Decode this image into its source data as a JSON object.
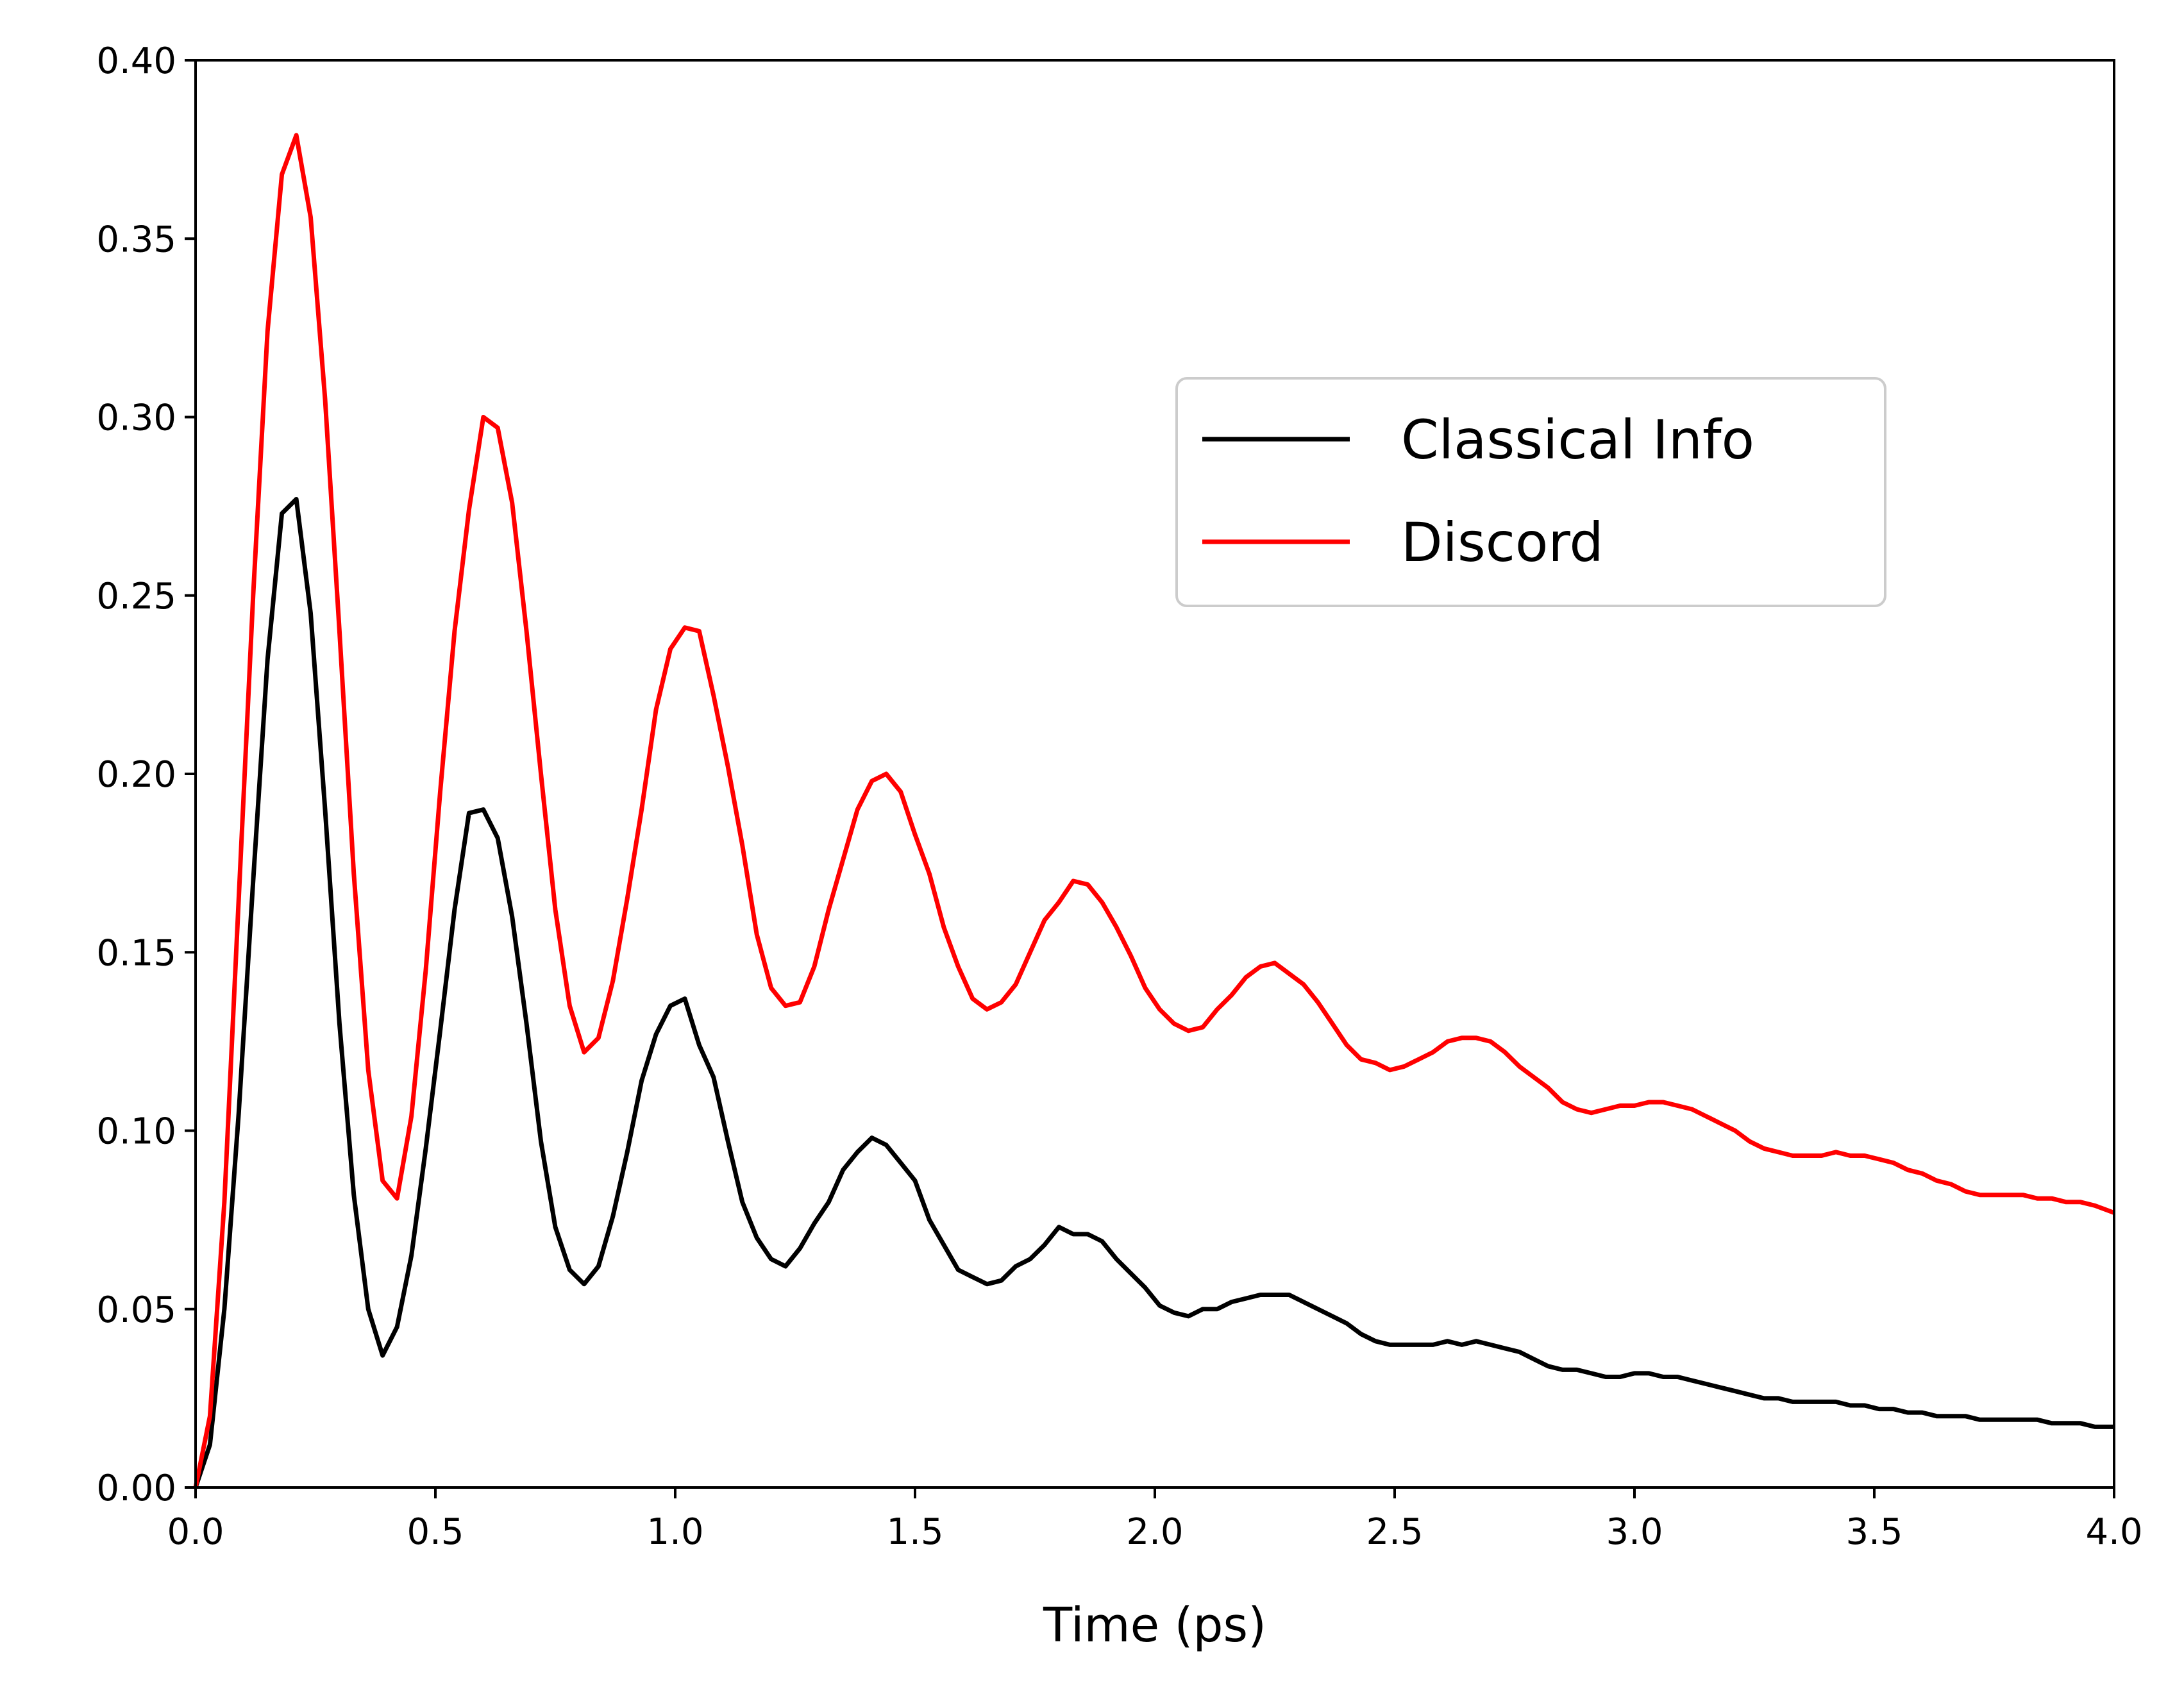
{
  "chart_data": {
    "type": "line",
    "title": "",
    "xlabel": "Time (ps)",
    "ylabel": "",
    "xlim": [
      0,
      4.0
    ],
    "ylim": [
      0,
      0.4
    ],
    "x_ticks": [
      0.0,
      0.5,
      1.0,
      1.5,
      2.0,
      2.5,
      3.0,
      3.5,
      4.0
    ],
    "y_ticks": [
      0.0,
      0.05,
      0.1,
      0.15,
      0.2,
      0.25,
      0.3,
      0.35,
      0.4
    ],
    "x_tick_labels": [
      "0.0",
      "0.5",
      "1.0",
      "1.5",
      "2.0",
      "2.5",
      "3.0",
      "3.5",
      "4.0"
    ],
    "y_tick_labels": [
      "0.00",
      "0.05",
      "0.10",
      "0.15",
      "0.20",
      "0.25",
      "0.30",
      "0.35",
      "0.40"
    ],
    "grid": false,
    "legend": {
      "position": "upper-right-center"
    },
    "series": [
      {
        "name": "Classical Info",
        "color": "#000000",
        "points": [
          [
            0.0,
            0.0
          ],
          [
            0.03,
            0.012
          ],
          [
            0.06,
            0.05
          ],
          [
            0.09,
            0.105
          ],
          [
            0.12,
            0.17
          ],
          [
            0.15,
            0.232
          ],
          [
            0.18,
            0.273
          ],
          [
            0.21,
            0.277
          ],
          [
            0.24,
            0.245
          ],
          [
            0.27,
            0.19
          ],
          [
            0.3,
            0.13
          ],
          [
            0.33,
            0.082
          ],
          [
            0.36,
            0.05
          ],
          [
            0.39,
            0.037
          ],
          [
            0.42,
            0.045
          ],
          [
            0.45,
            0.065
          ],
          [
            0.48,
            0.095
          ],
          [
            0.51,
            0.128
          ],
          [
            0.54,
            0.162
          ],
          [
            0.57,
            0.189
          ],
          [
            0.6,
            0.19
          ],
          [
            0.63,
            0.182
          ],
          [
            0.66,
            0.16
          ],
          [
            0.69,
            0.13
          ],
          [
            0.72,
            0.097
          ],
          [
            0.75,
            0.073
          ],
          [
            0.78,
            0.061
          ],
          [
            0.81,
            0.057
          ],
          [
            0.84,
            0.062
          ],
          [
            0.87,
            0.076
          ],
          [
            0.9,
            0.094
          ],
          [
            0.93,
            0.114
          ],
          [
            0.96,
            0.127
          ],
          [
            0.99,
            0.135
          ],
          [
            1.02,
            0.137
          ],
          [
            1.05,
            0.124
          ],
          [
            1.08,
            0.115
          ],
          [
            1.11,
            0.097
          ],
          [
            1.14,
            0.08
          ],
          [
            1.17,
            0.07
          ],
          [
            1.2,
            0.064
          ],
          [
            1.23,
            0.062
          ],
          [
            1.26,
            0.067
          ],
          [
            1.29,
            0.074
          ],
          [
            1.32,
            0.08
          ],
          [
            1.35,
            0.089
          ],
          [
            1.38,
            0.094
          ],
          [
            1.41,
            0.098
          ],
          [
            1.44,
            0.096
          ],
          [
            1.47,
            0.091
          ],
          [
            1.5,
            0.086
          ],
          [
            1.53,
            0.075
          ],
          [
            1.56,
            0.068
          ],
          [
            1.59,
            0.061
          ],
          [
            1.62,
            0.059
          ],
          [
            1.65,
            0.057
          ],
          [
            1.68,
            0.058
          ],
          [
            1.71,
            0.062
          ],
          [
            1.74,
            0.064
          ],
          [
            1.77,
            0.068
          ],
          [
            1.8,
            0.073
          ],
          [
            1.83,
            0.071
          ],
          [
            1.86,
            0.071
          ],
          [
            1.89,
            0.069
          ],
          [
            1.92,
            0.064
          ],
          [
            1.95,
            0.06
          ],
          [
            1.98,
            0.056
          ],
          [
            2.01,
            0.051
          ],
          [
            2.04,
            0.049
          ],
          [
            2.07,
            0.048
          ],
          [
            2.1,
            0.05
          ],
          [
            2.13,
            0.05
          ],
          [
            2.16,
            0.052
          ],
          [
            2.19,
            0.053
          ],
          [
            2.22,
            0.054
          ],
          [
            2.25,
            0.054
          ],
          [
            2.28,
            0.054
          ],
          [
            2.31,
            0.052
          ],
          [
            2.34,
            0.05
          ],
          [
            2.37,
            0.048
          ],
          [
            2.4,
            0.046
          ],
          [
            2.43,
            0.043
          ],
          [
            2.46,
            0.041
          ],
          [
            2.49,
            0.04
          ],
          [
            2.52,
            0.04
          ],
          [
            2.55,
            0.04
          ],
          [
            2.58,
            0.04
          ],
          [
            2.61,
            0.041
          ],
          [
            2.64,
            0.04
          ],
          [
            2.67,
            0.041
          ],
          [
            2.7,
            0.04
          ],
          [
            2.73,
            0.039
          ],
          [
            2.76,
            0.038
          ],
          [
            2.79,
            0.036
          ],
          [
            2.82,
            0.034
          ],
          [
            2.85,
            0.033
          ],
          [
            2.88,
            0.033
          ],
          [
            2.91,
            0.032
          ],
          [
            2.94,
            0.031
          ],
          [
            2.97,
            0.031
          ],
          [
            3.0,
            0.032
          ],
          [
            3.03,
            0.032
          ],
          [
            3.06,
            0.031
          ],
          [
            3.09,
            0.031
          ],
          [
            3.12,
            0.03
          ],
          [
            3.15,
            0.029
          ],
          [
            3.18,
            0.028
          ],
          [
            3.21,
            0.027
          ],
          [
            3.24,
            0.026
          ],
          [
            3.27,
            0.025
          ],
          [
            3.3,
            0.025
          ],
          [
            3.33,
            0.024
          ],
          [
            3.36,
            0.024
          ],
          [
            3.39,
            0.024
          ],
          [
            3.42,
            0.024
          ],
          [
            3.45,
            0.023
          ],
          [
            3.48,
            0.023
          ],
          [
            3.51,
            0.022
          ],
          [
            3.54,
            0.022
          ],
          [
            3.57,
            0.021
          ],
          [
            3.6,
            0.021
          ],
          [
            3.63,
            0.02
          ],
          [
            3.66,
            0.02
          ],
          [
            3.69,
            0.02
          ],
          [
            3.72,
            0.019
          ],
          [
            3.75,
            0.019
          ],
          [
            3.78,
            0.019
          ],
          [
            3.81,
            0.019
          ],
          [
            3.84,
            0.019
          ],
          [
            3.87,
            0.018
          ],
          [
            3.9,
            0.018
          ],
          [
            3.93,
            0.018
          ],
          [
            3.96,
            0.017
          ],
          [
            4.0,
            0.017
          ]
        ]
      },
      {
        "name": "Discord",
        "color": "#ff0000",
        "points": [
          [
            0.0,
            0.0
          ],
          [
            0.03,
            0.02
          ],
          [
            0.06,
            0.08
          ],
          [
            0.09,
            0.165
          ],
          [
            0.12,
            0.25
          ],
          [
            0.15,
            0.324
          ],
          [
            0.18,
            0.368
          ],
          [
            0.21,
            0.379
          ],
          [
            0.24,
            0.356
          ],
          [
            0.27,
            0.305
          ],
          [
            0.3,
            0.24
          ],
          [
            0.33,
            0.172
          ],
          [
            0.36,
            0.117
          ],
          [
            0.39,
            0.086
          ],
          [
            0.42,
            0.081
          ],
          [
            0.45,
            0.104
          ],
          [
            0.48,
            0.145
          ],
          [
            0.51,
            0.195
          ],
          [
            0.54,
            0.24
          ],
          [
            0.57,
            0.274
          ],
          [
            0.6,
            0.3
          ],
          [
            0.63,
            0.297
          ],
          [
            0.66,
            0.276
          ],
          [
            0.69,
            0.24
          ],
          [
            0.72,
            0.2
          ],
          [
            0.75,
            0.162
          ],
          [
            0.78,
            0.135
          ],
          [
            0.81,
            0.122
          ],
          [
            0.84,
            0.126
          ],
          [
            0.87,
            0.142
          ],
          [
            0.9,
            0.165
          ],
          [
            0.93,
            0.19
          ],
          [
            0.96,
            0.218
          ],
          [
            0.99,
            0.235
          ],
          [
            1.02,
            0.241
          ],
          [
            1.05,
            0.24
          ],
          [
            1.08,
            0.222
          ],
          [
            1.11,
            0.202
          ],
          [
            1.14,
            0.18
          ],
          [
            1.17,
            0.155
          ],
          [
            1.2,
            0.14
          ],
          [
            1.23,
            0.135
          ],
          [
            1.26,
            0.136
          ],
          [
            1.29,
            0.146
          ],
          [
            1.32,
            0.162
          ],
          [
            1.35,
            0.176
          ],
          [
            1.38,
            0.19
          ],
          [
            1.41,
            0.198
          ],
          [
            1.44,
            0.2
          ],
          [
            1.47,
            0.195
          ],
          [
            1.5,
            0.183
          ],
          [
            1.53,
            0.172
          ],
          [
            1.56,
            0.157
          ],
          [
            1.59,
            0.146
          ],
          [
            1.62,
            0.137
          ],
          [
            1.65,
            0.134
          ],
          [
            1.68,
            0.136
          ],
          [
            1.71,
            0.141
          ],
          [
            1.74,
            0.15
          ],
          [
            1.77,
            0.159
          ],
          [
            1.8,
            0.164
          ],
          [
            1.83,
            0.17
          ],
          [
            1.86,
            0.169
          ],
          [
            1.89,
            0.164
          ],
          [
            1.92,
            0.157
          ],
          [
            1.95,
            0.149
          ],
          [
            1.98,
            0.14
          ],
          [
            2.01,
            0.134
          ],
          [
            2.04,
            0.13
          ],
          [
            2.07,
            0.128
          ],
          [
            2.1,
            0.129
          ],
          [
            2.13,
            0.134
          ],
          [
            2.16,
            0.138
          ],
          [
            2.19,
            0.143
          ],
          [
            2.22,
            0.146
          ],
          [
            2.25,
            0.147
          ],
          [
            2.28,
            0.144
          ],
          [
            2.31,
            0.141
          ],
          [
            2.34,
            0.136
          ],
          [
            2.37,
            0.13
          ],
          [
            2.4,
            0.124
          ],
          [
            2.43,
            0.12
          ],
          [
            2.46,
            0.119
          ],
          [
            2.49,
            0.117
          ],
          [
            2.52,
            0.118
          ],
          [
            2.55,
            0.12
          ],
          [
            2.58,
            0.122
          ],
          [
            2.61,
            0.125
          ],
          [
            2.64,
            0.126
          ],
          [
            2.67,
            0.126
          ],
          [
            2.7,
            0.125
          ],
          [
            2.73,
            0.122
          ],
          [
            2.76,
            0.118
          ],
          [
            2.79,
            0.115
          ],
          [
            2.82,
            0.112
          ],
          [
            2.85,
            0.108
          ],
          [
            2.88,
            0.106
          ],
          [
            2.91,
            0.105
          ],
          [
            2.94,
            0.106
          ],
          [
            2.97,
            0.107
          ],
          [
            3.0,
            0.107
          ],
          [
            3.03,
            0.108
          ],
          [
            3.06,
            0.108
          ],
          [
            3.09,
            0.107
          ],
          [
            3.12,
            0.106
          ],
          [
            3.15,
            0.104
          ],
          [
            3.18,
            0.102
          ],
          [
            3.21,
            0.1
          ],
          [
            3.24,
            0.097
          ],
          [
            3.27,
            0.095
          ],
          [
            3.3,
            0.094
          ],
          [
            3.33,
            0.093
          ],
          [
            3.36,
            0.093
          ],
          [
            3.39,
            0.093
          ],
          [
            3.42,
            0.094
          ],
          [
            3.45,
            0.093
          ],
          [
            3.48,
            0.093
          ],
          [
            3.51,
            0.092
          ],
          [
            3.54,
            0.091
          ],
          [
            3.57,
            0.089
          ],
          [
            3.6,
            0.088
          ],
          [
            3.63,
            0.086
          ],
          [
            3.66,
            0.085
          ],
          [
            3.69,
            0.083
          ],
          [
            3.72,
            0.082
          ],
          [
            3.75,
            0.082
          ],
          [
            3.78,
            0.082
          ],
          [
            3.81,
            0.082
          ],
          [
            3.84,
            0.081
          ],
          [
            3.87,
            0.081
          ],
          [
            3.9,
            0.08
          ],
          [
            3.93,
            0.08
          ],
          [
            3.96,
            0.079
          ],
          [
            4.0,
            0.077
          ]
        ]
      }
    ]
  }
}
